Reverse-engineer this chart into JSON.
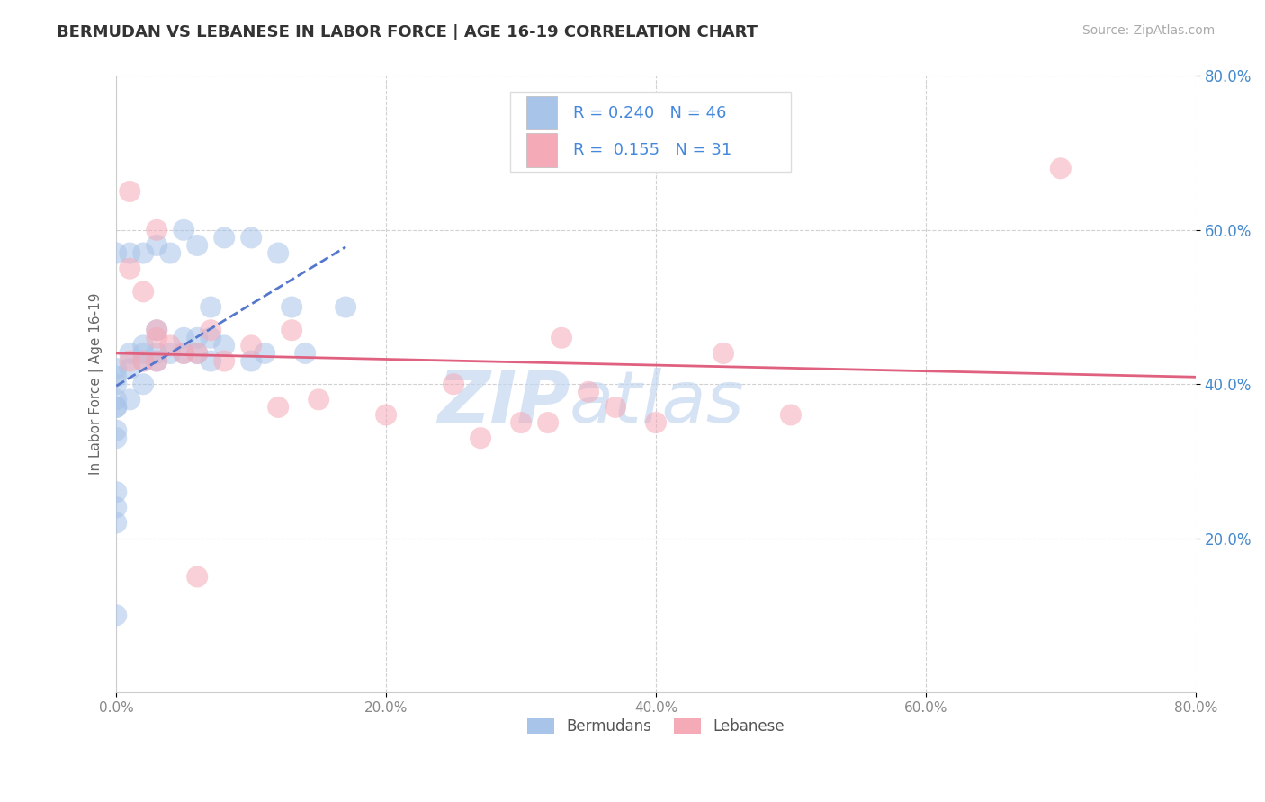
{
  "title": "BERMUDAN VS LEBANESE IN LABOR FORCE | AGE 16-19 CORRELATION CHART",
  "source_text": "Source: ZipAtlas.com",
  "ylabel": "In Labor Force | Age 16-19",
  "xlim": [
    0.0,
    0.8
  ],
  "ylim": [
    0.0,
    0.8
  ],
  "xtick_vals": [
    0.0,
    0.2,
    0.4,
    0.6,
    0.8
  ],
  "ytick_vals": [
    0.2,
    0.4,
    0.6,
    0.8
  ],
  "xtick_labels": [
    "0.0%",
    "20.0%",
    "40.0%",
    "60.0%",
    "80.0%"
  ],
  "ytick_labels": [
    "20.0%",
    "40.0%",
    "60.0%",
    "80.0%"
  ],
  "background_color": "#ffffff",
  "grid_color": "#cccccc",
  "bermudan_color": "#a8c4e8",
  "lebanese_color": "#f5aab8",
  "bermudan_R": 0.24,
  "bermudan_N": 46,
  "lebanese_R": 0.155,
  "lebanese_N": 31,
  "bermudan_line_color": "#5577cc",
  "lebanese_line_color": "#e06080",
  "legend_label_1": "Bermudans",
  "legend_label_2": "Lebanese",
  "bermudan_x": [
    0.0,
    0.0,
    0.0,
    0.0,
    0.0,
    0.0,
    0.0,
    0.0,
    0.0,
    0.0,
    0.0,
    0.0,
    0.0,
    0.01,
    0.01,
    0.01,
    0.01,
    0.02,
    0.02,
    0.02,
    0.02,
    0.02,
    0.03,
    0.03,
    0.03,
    0.03,
    0.04,
    0.04,
    0.05,
    0.05,
    0.05,
    0.06,
    0.06,
    0.06,
    0.07,
    0.07,
    0.07,
    0.08,
    0.08,
    0.1,
    0.1,
    0.11,
    0.12,
    0.13,
    0.14,
    0.17
  ],
  "bermudan_y": [
    0.1,
    0.22,
    0.24,
    0.26,
    0.33,
    0.34,
    0.37,
    0.37,
    0.38,
    0.4,
    0.41,
    0.42,
    0.57,
    0.38,
    0.42,
    0.44,
    0.57,
    0.4,
    0.43,
    0.44,
    0.45,
    0.57,
    0.43,
    0.44,
    0.47,
    0.58,
    0.44,
    0.57,
    0.44,
    0.46,
    0.6,
    0.44,
    0.46,
    0.58,
    0.43,
    0.46,
    0.5,
    0.45,
    0.59,
    0.43,
    0.59,
    0.44,
    0.57,
    0.5,
    0.44,
    0.5
  ],
  "lebanese_x": [
    0.01,
    0.01,
    0.01,
    0.02,
    0.02,
    0.03,
    0.03,
    0.03,
    0.03,
    0.04,
    0.05,
    0.06,
    0.06,
    0.07,
    0.08,
    0.1,
    0.12,
    0.13,
    0.15,
    0.2,
    0.25,
    0.27,
    0.3,
    0.32,
    0.33,
    0.35,
    0.37,
    0.4,
    0.45,
    0.5,
    0.7
  ],
  "lebanese_y": [
    0.43,
    0.55,
    0.65,
    0.43,
    0.52,
    0.43,
    0.46,
    0.47,
    0.6,
    0.45,
    0.44,
    0.15,
    0.44,
    0.47,
    0.43,
    0.45,
    0.37,
    0.47,
    0.38,
    0.36,
    0.4,
    0.33,
    0.35,
    0.35,
    0.46,
    0.39,
    0.37,
    0.35,
    0.44,
    0.36,
    0.68
  ]
}
